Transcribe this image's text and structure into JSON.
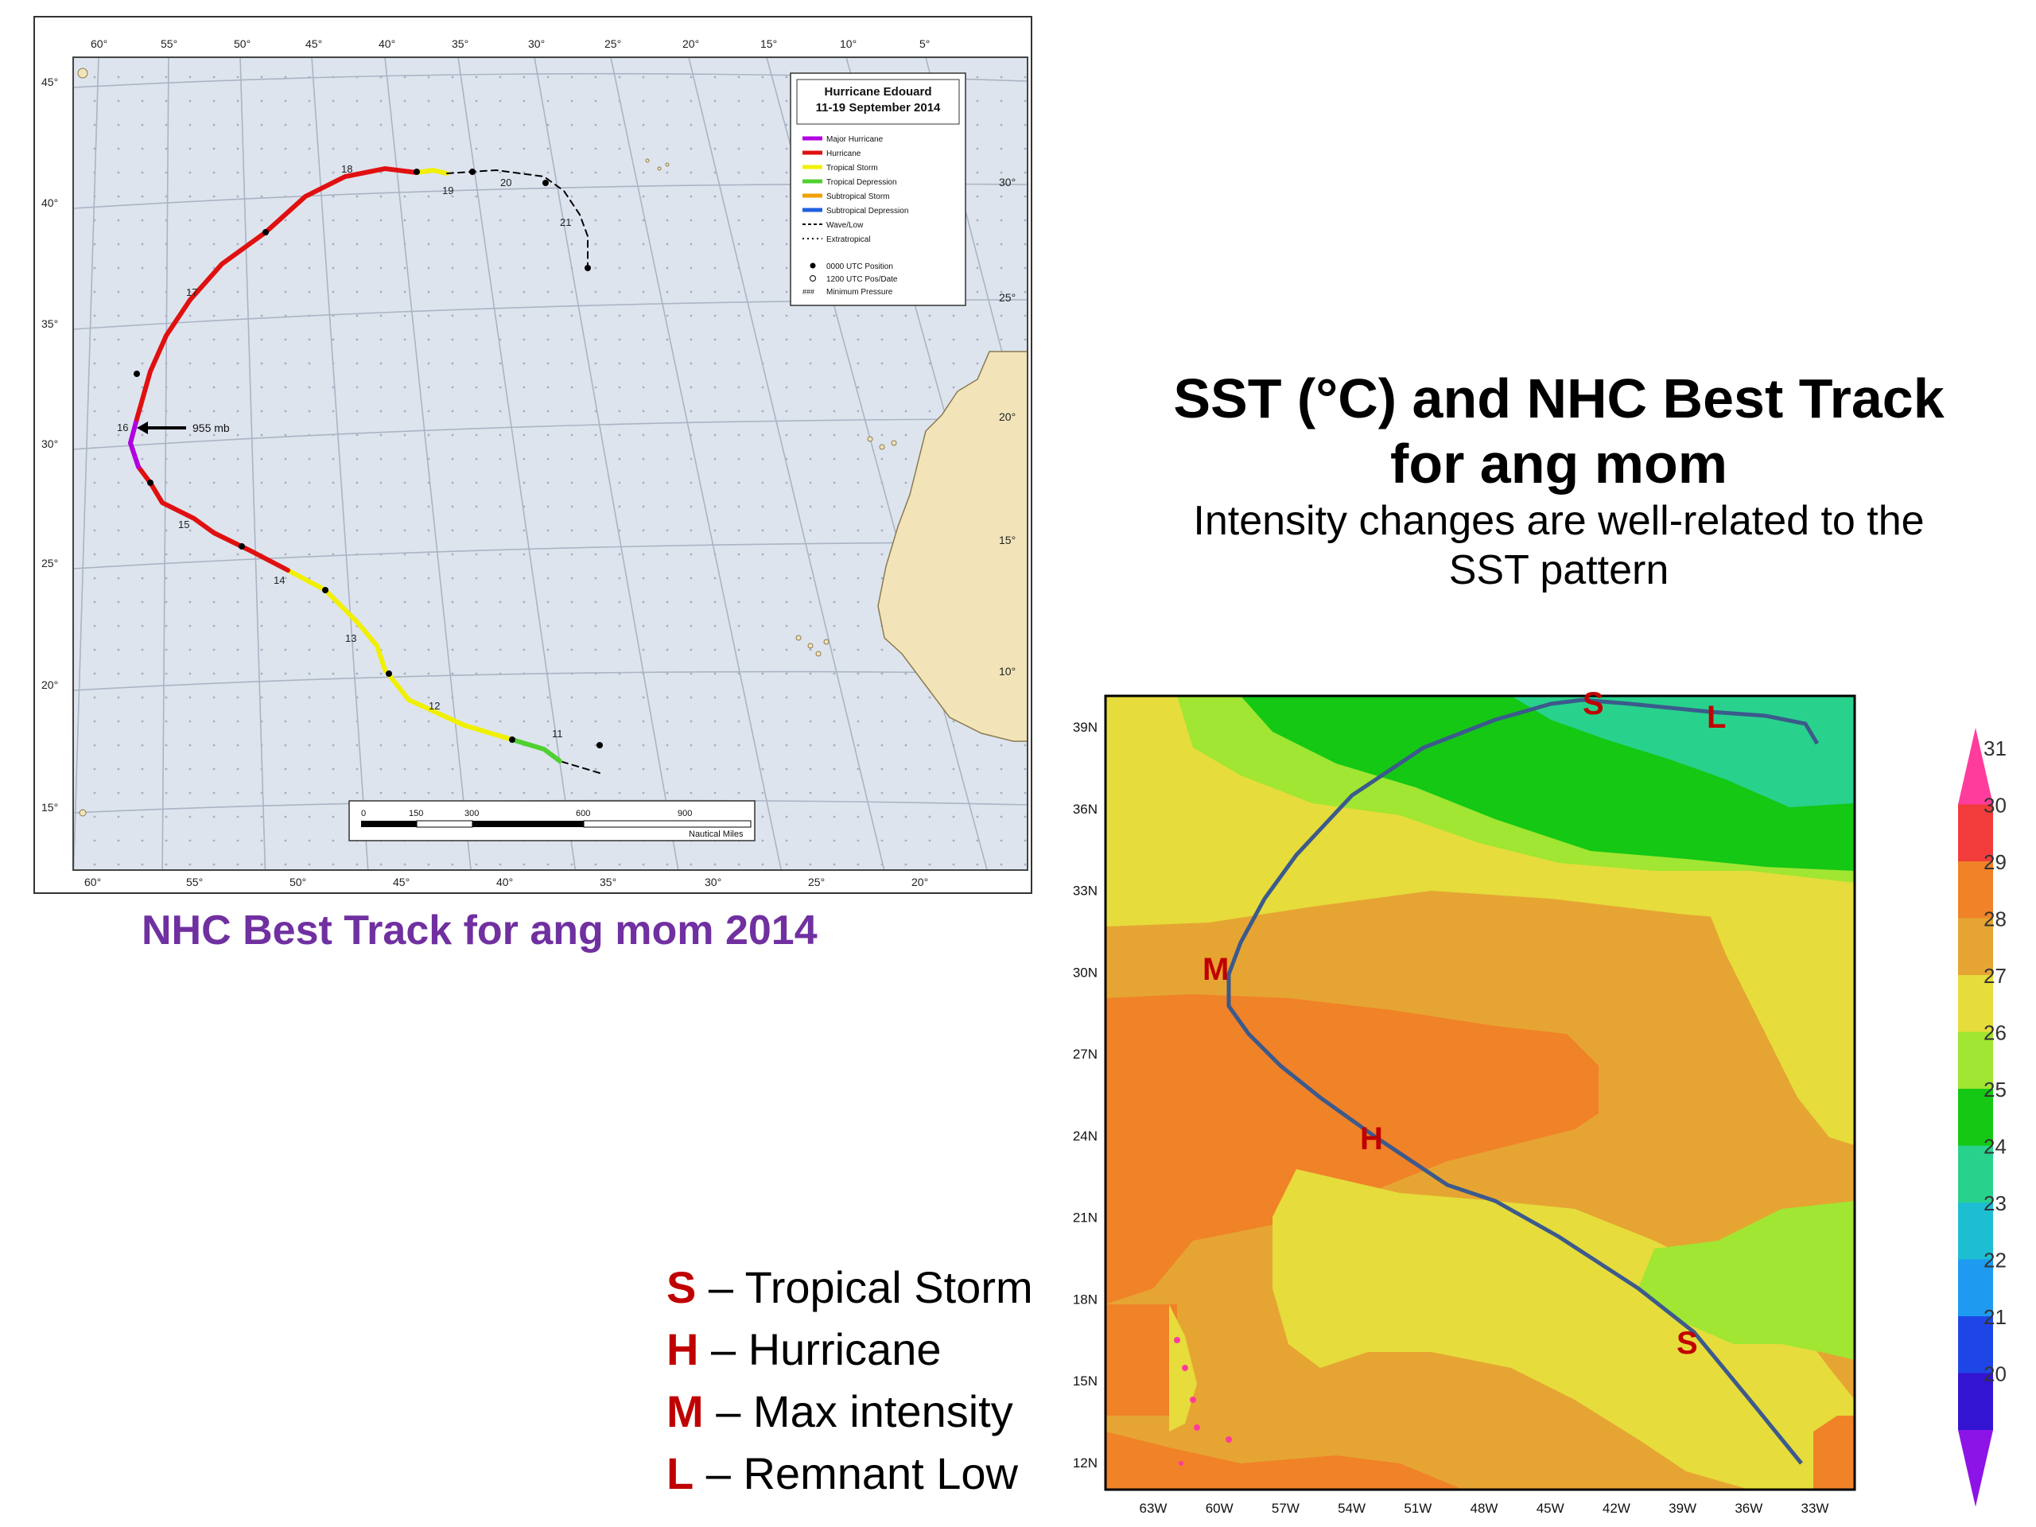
{
  "left_map": {
    "legend_box": {
      "title_line1": "Hurricane Edouard",
      "title_line2": "11-19 September 2014",
      "items": [
        {
          "label": "Major Hurricane",
          "color": "#b000e0",
          "style": "solid"
        },
        {
          "label": "Hurricane",
          "color": "#e01010",
          "style": "solid"
        },
        {
          "label": "Tropical Storm",
          "color": "#f0f000",
          "style": "solid"
        },
        {
          "label": "Tropical Depression",
          "color": "#50d030",
          "style": "solid"
        },
        {
          "label": "Subtropical Storm",
          "color": "#f0a000",
          "style": "solid"
        },
        {
          "label": "Subtropical Depression",
          "color": "#2060e0",
          "style": "solid"
        },
        {
          "label": "Wave/Low",
          "color": "#000000",
          "style": "dashed"
        },
        {
          "label": "Extratropical",
          "color": "#000000",
          "style": "plus"
        }
      ],
      "marker_items": [
        "0000 UTC Position",
        "1200 UTC Pos/Date",
        "Minimum Pressure"
      ]
    },
    "top_lon_labels": [
      "60°",
      "55°",
      "50°",
      "45°",
      "40°",
      "35°",
      "30°",
      "25°",
      "20°",
      "15°",
      "10°",
      "5°"
    ],
    "bottom_lon_labels": [
      "60°",
      "55°",
      "50°",
      "45°",
      "40°",
      "35°",
      "30°",
      "25°",
      "20°"
    ],
    "left_lat_labels": [
      "45°",
      "40°",
      "35°",
      "30°",
      "25°",
      "20°",
      "15°"
    ],
    "right_lat_labels": [
      "30°",
      "25°",
      "20°",
      "15°",
      "10°"
    ],
    "date_labels": [
      "18",
      "19",
      "20",
      "21",
      "17",
      "16",
      "15",
      "14",
      "13",
      "12",
      "11"
    ],
    "min_pressure_label": "955 mb",
    "scale_bar": {
      "ticks": [
        "0",
        "150",
        "300",
        "600",
        "900"
      ],
      "unit": "Nautical Miles"
    },
    "colors": {
      "ocean": "#dde4ee",
      "land": "#f2e4b8",
      "grid": "#aab4c4"
    }
  },
  "caption": "NHC Best Track for ang mom 2014",
  "title": {
    "line1": "SST (°C) and NHC Best Track",
    "line2": "for ang mom",
    "subtitle_line1": "Intensity changes are well-related to the",
    "subtitle_line2": "SST pattern"
  },
  "letter_legend": [
    {
      "letter": "S",
      "text": "– Tropical Storm"
    },
    {
      "letter": "H",
      "text": "– Hurricane"
    },
    {
      "letter": "M",
      "text": "– Max intensity"
    },
    {
      "letter": "L",
      "text": "– Remnant Low"
    }
  ],
  "sst_map": {
    "lat_labels": [
      "39N",
      "36N",
      "33N",
      "30N",
      "27N",
      "24N",
      "21N",
      "18N",
      "15N",
      "12N"
    ],
    "lon_labels": [
      "63W",
      "60W",
      "57W",
      "54W",
      "51W",
      "48W",
      "45W",
      "42W",
      "39W",
      "36W",
      "33W"
    ],
    "track_markers": [
      "S",
      "L",
      "M",
      "H",
      "S"
    ],
    "colorbar": {
      "labels": [
        "31",
        "30",
        "29",
        "28",
        "27",
        "26",
        "25",
        "24",
        "23",
        "22",
        "21",
        "20"
      ],
      "colors": [
        "#ff3c9c",
        "#f23c3c",
        "#f08228",
        "#e6a532",
        "#e6dc3c",
        "#a0e632",
        "#14c814",
        "#28d28c",
        "#1ebed2",
        "#1e9bf0",
        "#1e46e6",
        "#3214d2",
        "#8c14e6"
      ]
    },
    "marker_color": "#c00000",
    "track_color": "#3c5a8c"
  }
}
